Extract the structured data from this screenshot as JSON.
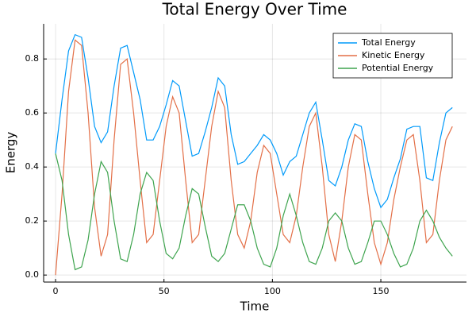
{
  "chart_data": {
    "type": "line",
    "title": "Total Energy Over Time",
    "x_label": "Time",
    "y_label": "Energy",
    "x": [
      0,
      3,
      6,
      9,
      12,
      15,
      18,
      21,
      24,
      27,
      30,
      33,
      36,
      39,
      42,
      45,
      48,
      51,
      54,
      57,
      60,
      63,
      66,
      69,
      72,
      75,
      78,
      81,
      84,
      87,
      90,
      93,
      96,
      99,
      102,
      105,
      108,
      111,
      114,
      117,
      120,
      123,
      126,
      129,
      132,
      135,
      138,
      141,
      144,
      147,
      150,
      153,
      156,
      159,
      162,
      165,
      168,
      171,
      174,
      177,
      180,
      183
    ],
    "series": [
      {
        "name": "Total Energy",
        "color": "#009afa",
        "values": [
          0.45,
          0.65,
          0.83,
          0.89,
          0.88,
          0.73,
          0.55,
          0.49,
          0.53,
          0.7,
          0.84,
          0.85,
          0.75,
          0.65,
          0.5,
          0.5,
          0.55,
          0.63,
          0.72,
          0.7,
          0.57,
          0.44,
          0.45,
          0.53,
          0.62,
          0.73,
          0.7,
          0.52,
          0.41,
          0.42,
          0.45,
          0.48,
          0.52,
          0.5,
          0.45,
          0.37,
          0.42,
          0.44,
          0.52,
          0.6,
          0.64,
          0.5,
          0.35,
          0.33,
          0.4,
          0.5,
          0.56,
          0.55,
          0.42,
          0.32,
          0.25,
          0.28,
          0.36,
          0.43,
          0.54,
          0.55,
          0.55,
          0.36,
          0.35,
          0.49,
          0.6,
          0.62
        ]
      },
      {
        "name": "Kinetic Energy",
        "color": "#e36f47",
        "values": [
          0,
          0.3,
          0.68,
          0.87,
          0.85,
          0.6,
          0.25,
          0.07,
          0.15,
          0.5,
          0.78,
          0.8,
          0.6,
          0.35,
          0.12,
          0.15,
          0.35,
          0.55,
          0.66,
          0.6,
          0.35,
          0.12,
          0.15,
          0.35,
          0.55,
          0.68,
          0.62,
          0.35,
          0.15,
          0.1,
          0.2,
          0.38,
          0.48,
          0.45,
          0.3,
          0.15,
          0.12,
          0.22,
          0.4,
          0.55,
          0.6,
          0.4,
          0.15,
          0.05,
          0.2,
          0.4,
          0.52,
          0.5,
          0.3,
          0.12,
          0.04,
          0.12,
          0.28,
          0.4,
          0.5,
          0.52,
          0.35,
          0.12,
          0.15,
          0.35,
          0.5,
          0.55
        ]
      },
      {
        "name": "Potential Energy",
        "color": "#3ea44e",
        "values": [
          0.45,
          0.35,
          0.15,
          0.02,
          0.03,
          0.13,
          0.3,
          0.42,
          0.38,
          0.2,
          0.06,
          0.05,
          0.15,
          0.3,
          0.38,
          0.35,
          0.2,
          0.08,
          0.06,
          0.1,
          0.22,
          0.32,
          0.3,
          0.18,
          0.07,
          0.05,
          0.08,
          0.17,
          0.26,
          0.26,
          0.2,
          0.1,
          0.04,
          0.03,
          0.1,
          0.22,
          0.3,
          0.22,
          0.12,
          0.05,
          0.04,
          0.1,
          0.2,
          0.23,
          0.2,
          0.1,
          0.04,
          0.05,
          0.12,
          0.2,
          0.2,
          0.15,
          0.08,
          0.03,
          0.04,
          0.1,
          0.2,
          0.24,
          0.2,
          0.14,
          0.1,
          0.07
        ]
      }
    ],
    "xlim": [
      -5.5,
      189.5
    ],
    "ylim": [
      -0.026,
      0.93
    ],
    "xticks": [
      0,
      50,
      100,
      150
    ],
    "yticks": [
      {
        "value": 0,
        "label": "0.0"
      },
      0.2,
      0.4,
      0.6,
      0.8
    ],
    "grid": true,
    "legend_position": "top-right"
  }
}
